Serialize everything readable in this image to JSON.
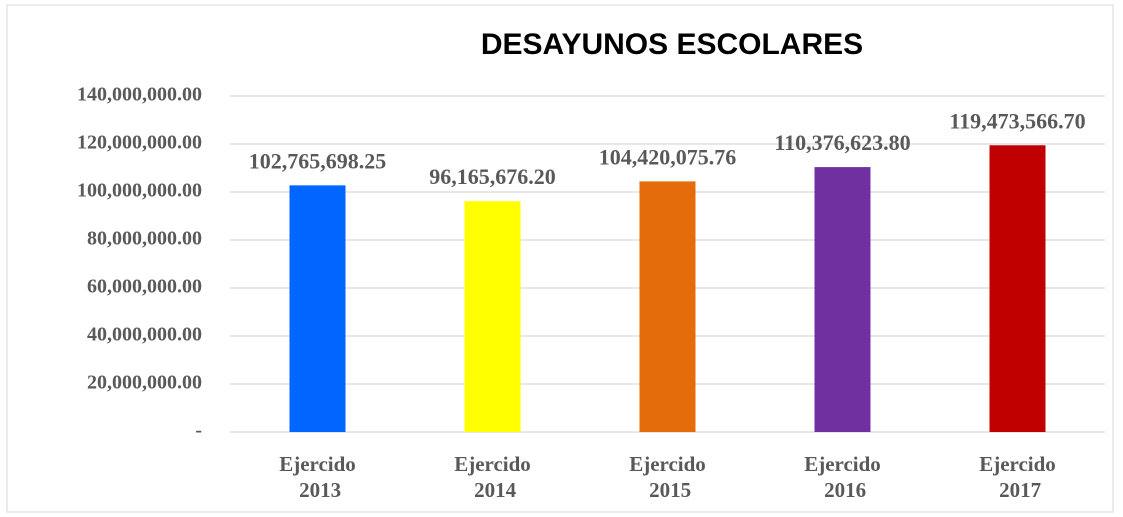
{
  "chart_data": {
    "type": "bar",
    "title": "DESAYUNOS ESCOLARES",
    "categories": [
      "Ejercido 2013",
      "Ejercido 2014",
      "Ejercido 2015",
      "Ejercido 2016",
      "Ejercido 2017"
    ],
    "values": [
      102765698.25,
      96165676.2,
      104420075.76,
      110376623.8,
      119473566.7
    ],
    "value_labels": [
      "102,765,698.25",
      "96,165,676.20",
      "104,420,075.76",
      "110,376,623.80",
      "119,473,566.70"
    ],
    "colors": [
      "#0066ff",
      "#ffff00",
      "#e46c0a",
      "#7030a0",
      "#c00000"
    ],
    "ylim": [
      0,
      140000000
    ],
    "yticks": [
      {
        "value": 0,
        "label": "-"
      },
      {
        "value": 20000000,
        "label": "20,000,000.00"
      },
      {
        "value": 40000000,
        "label": "40,000,000.00"
      },
      {
        "value": 60000000,
        "label": "60,000,000.00"
      },
      {
        "value": 80000000,
        "label": "80,000,000.00"
      },
      {
        "value": 100000000,
        "label": "100,000,000.00"
      },
      {
        "value": 120000000,
        "label": "120,000,000.00"
      },
      {
        "value": 140000000,
        "label": "140,000,000.00"
      }
    ],
    "grid": true
  }
}
